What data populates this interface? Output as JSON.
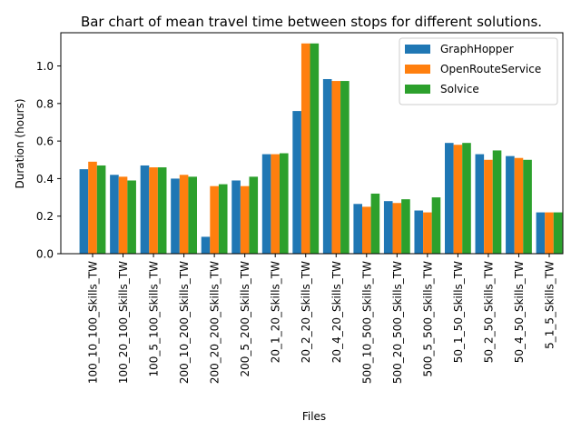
{
  "chart_data": {
    "type": "bar",
    "title": "Bar chart of mean travel time between stops for different solutions.",
    "xlabel": "Files",
    "ylabel": "Duration (hours)",
    "ylim": [
      0,
      1.177
    ],
    "yticks": [
      "0.0",
      "0.2",
      "0.4",
      "0.6",
      "0.8",
      "1.0"
    ],
    "grid": false,
    "legend_position": "top-right",
    "categories": [
      "100_10_100_Skills_TW",
      "100_20_100_Skills_TW",
      "100_5_100_Skills_TW",
      "200_10_200_Skills_TW",
      "200_20_200_Skills_TW",
      "200_5_200_Skills_TW",
      "20_1_20_Skills_TW",
      "20_2_20_Skills_TW",
      "20_4_20_Skills_TW",
      "500_10_500_Skills_TW",
      "500_20_500_Skills_TW",
      "500_5_500_Skills_TW",
      "50_1_50_Skills_TW",
      "50_2_50_Skills_TW",
      "50_4_50_Skills_TW",
      "5_1_5_Skills_TW"
    ],
    "series": [
      {
        "name": "GraphHopper",
        "color": "#1f77b4",
        "values": [
          0.45,
          0.42,
          0.47,
          0.4,
          0.09,
          0.39,
          0.53,
          0.76,
          0.93,
          0.265,
          0.28,
          0.23,
          0.59,
          0.53,
          0.52,
          0.22
        ]
      },
      {
        "name": "OpenRouteService",
        "color": "#ff7f0e",
        "values": [
          0.49,
          0.41,
          0.46,
          0.42,
          0.36,
          0.36,
          0.53,
          1.12,
          0.92,
          0.25,
          0.27,
          0.22,
          0.58,
          0.5,
          0.51,
          0.22
        ]
      },
      {
        "name": "Solvice",
        "color": "#2ca02c",
        "values": [
          0.47,
          0.39,
          0.46,
          0.41,
          0.37,
          0.41,
          0.535,
          1.12,
          0.92,
          0.32,
          0.29,
          0.3,
          0.59,
          0.55,
          0.5,
          0.22
        ]
      }
    ]
  }
}
